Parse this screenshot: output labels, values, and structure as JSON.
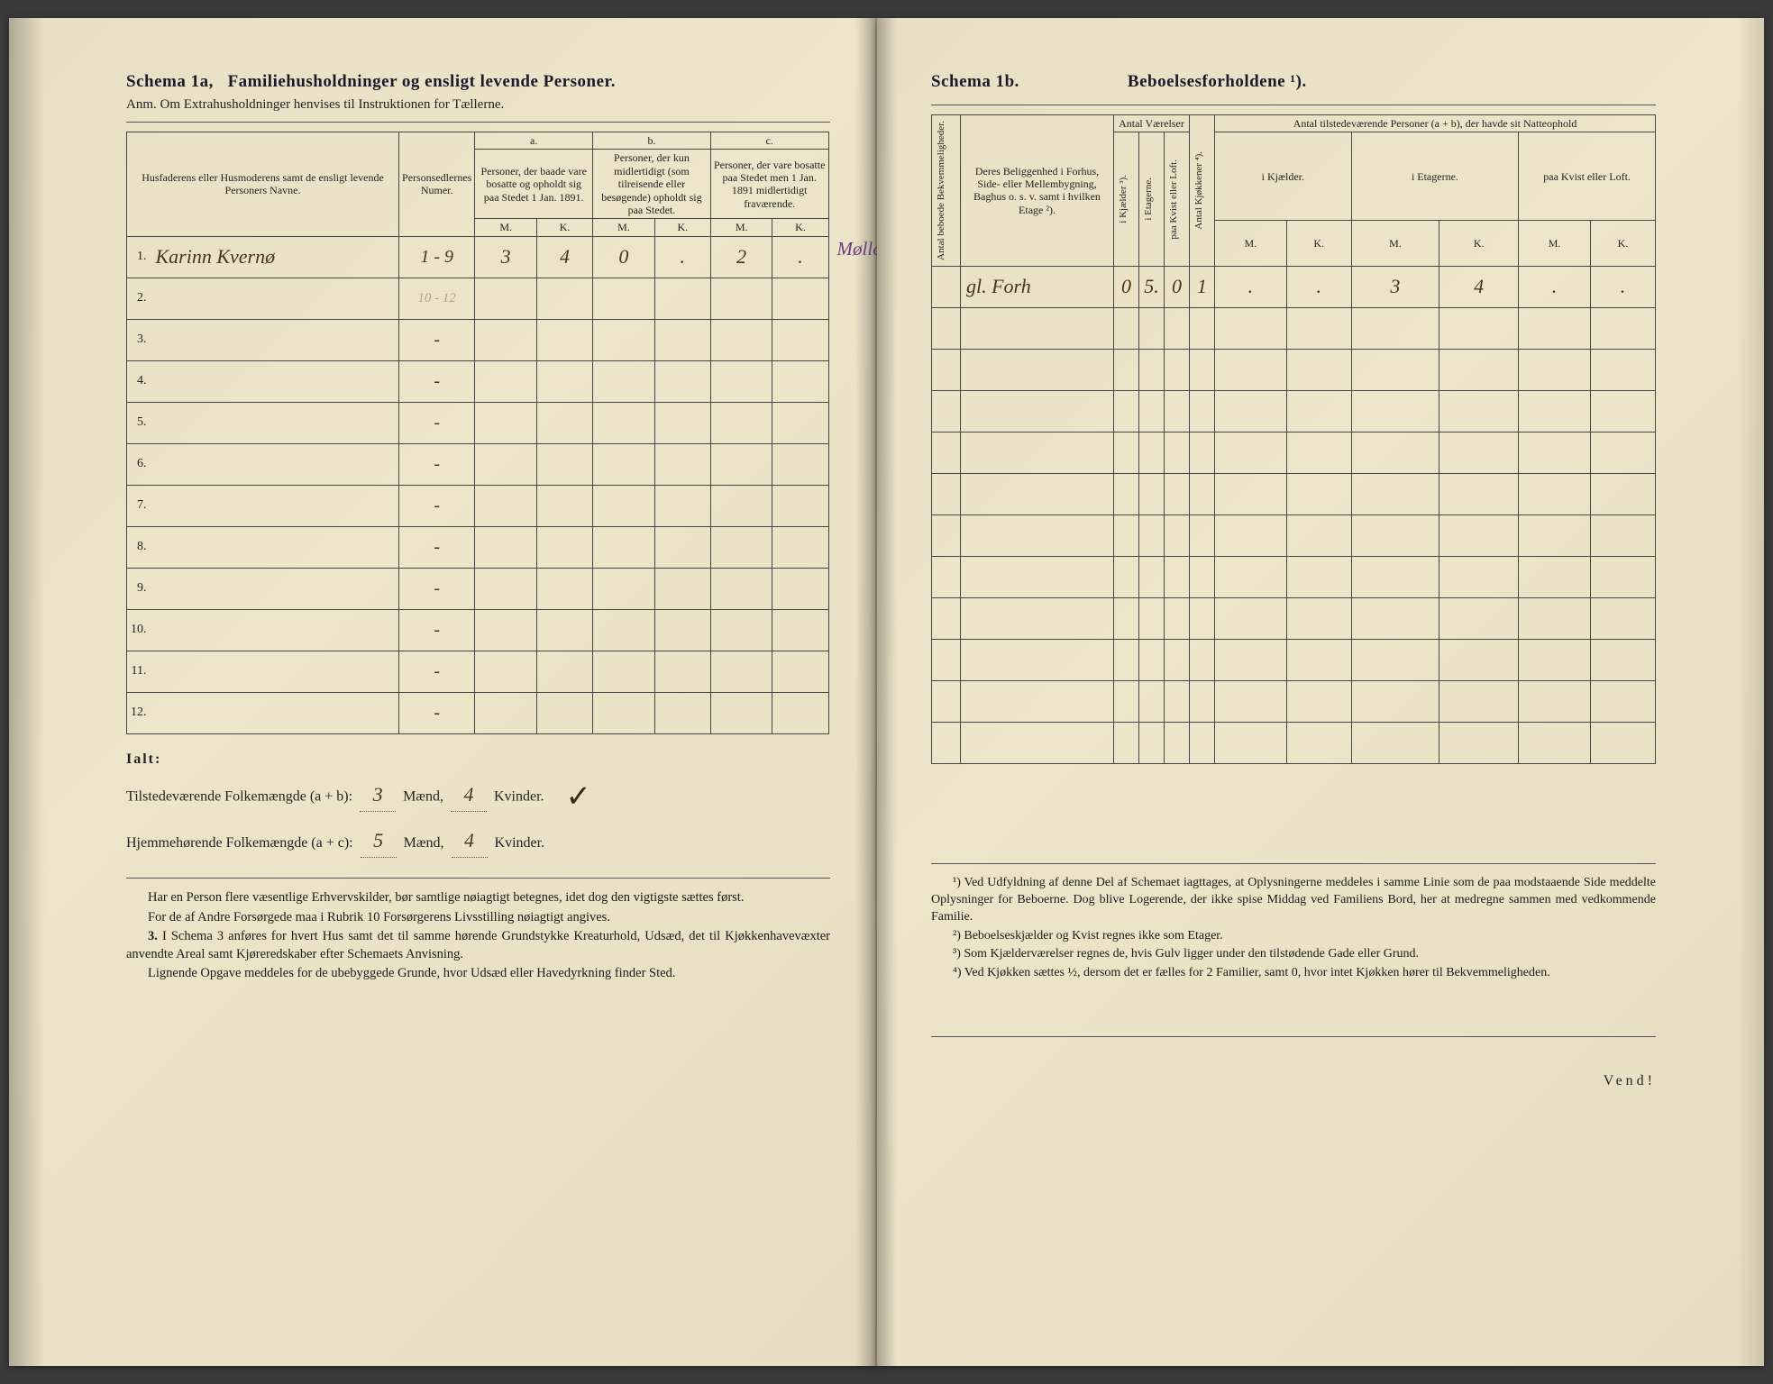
{
  "left": {
    "title_a": "Schema 1a,",
    "title_b": "Familiehusholdninger og ensligt levende Personer.",
    "anm": "Anm. Om Extrahusholdninger henvises til Instruktionen for Tællerne.",
    "head_names": "Husfaderens eller Husmoderens samt de ensligt levende Personers Navne.",
    "head_persed": "Personsedlernes Numer.",
    "col_a": "a.",
    "col_b": "b.",
    "col_c": "c.",
    "head_a": "Personer, der baade vare bosatte og opholdt sig paa Stedet 1 Jan. 1891.",
    "head_b": "Personer, der kun midlertidigt (som tilreisende eller besøgende) opholdt sig paa Stedet.",
    "head_c": "Personer, der vare bosatte paa Stedet men 1 Jan. 1891 midlertidigt fraværende.",
    "mk_m": "M.",
    "mk_k": "K.",
    "rows": [
      {
        "n": "1.",
        "name": "Karinn Kvernø",
        "ps": "1 - 9",
        "am": "3",
        "ak": "4",
        "bm": "0",
        "bk": ".",
        "cm": "2",
        "ck": ".",
        "note": "Mølleierske"
      },
      {
        "n": "2.",
        "name": "",
        "ps": "10 - 12",
        "am": "",
        "ak": "",
        "bm": "",
        "bk": "",
        "cm": "",
        "ck": "",
        "note": ""
      },
      {
        "n": "3.",
        "name": "",
        "ps": "-",
        "am": "",
        "ak": "",
        "bm": "",
        "bk": "",
        "cm": "",
        "ck": "",
        "note": ""
      },
      {
        "n": "4.",
        "name": "",
        "ps": "-",
        "am": "",
        "ak": "",
        "bm": "",
        "bk": "",
        "cm": "",
        "ck": "",
        "note": ""
      },
      {
        "n": "5.",
        "name": "",
        "ps": "-",
        "am": "",
        "ak": "",
        "bm": "",
        "bk": "",
        "cm": "",
        "ck": "",
        "note": ""
      },
      {
        "n": "6.",
        "name": "",
        "ps": "-",
        "am": "",
        "ak": "",
        "bm": "",
        "bk": "",
        "cm": "",
        "ck": "",
        "note": ""
      },
      {
        "n": "7.",
        "name": "",
        "ps": "-",
        "am": "",
        "ak": "",
        "bm": "",
        "bk": "",
        "cm": "",
        "ck": "",
        "note": ""
      },
      {
        "n": "8.",
        "name": "",
        "ps": "-",
        "am": "",
        "ak": "",
        "bm": "",
        "bk": "",
        "cm": "",
        "ck": "",
        "note": ""
      },
      {
        "n": "9.",
        "name": "",
        "ps": "-",
        "am": "",
        "ak": "",
        "bm": "",
        "bk": "",
        "cm": "",
        "ck": "",
        "note": ""
      },
      {
        "n": "10.",
        "name": "",
        "ps": "-",
        "am": "",
        "ak": "",
        "bm": "",
        "bk": "",
        "cm": "",
        "ck": "",
        "note": ""
      },
      {
        "n": "11.",
        "name": "",
        "ps": "-",
        "am": "",
        "ak": "",
        "bm": "",
        "bk": "",
        "cm": "",
        "ck": "",
        "note": ""
      },
      {
        "n": "12.",
        "name": "",
        "ps": "-",
        "am": "",
        "ak": "",
        "bm": "",
        "bk": "",
        "cm": "",
        "ck": "",
        "note": ""
      }
    ],
    "totals_label": "Ialt:",
    "tot1_pre": "Tilstedeværende Folkemængde (a + b):",
    "tot1_m": "3",
    "tot1_m_lbl": "Mænd,",
    "tot1_k": "4",
    "tot1_k_lbl": "Kvinder.",
    "tot2_pre": "Hjemmehørende Folkemængde (a + c):",
    "tot2_m": "5",
    "tot2_k": "4",
    "fn1": "Har en Person flere væsentlige Erhvervskilder, bør samtlige nøiagtigt betegnes, idet dog den vigtigste sættes først.",
    "fn2": "For de af Andre Forsørgede maa i Rubrik 10 Forsørgerens Livsstilling nøiagtigt angives.",
    "fn3_num": "3.",
    "fn3": "I Schema 3 anføres for hvert Hus samt det til samme hørende Grundstykke Kreaturhold, Udsæd, det til Kjøkkenhavevæxter anvendte Areal samt Kjøreredskaber efter Schemaets Anvisning.",
    "fn4": "Lignende Opgave meddeles for de ubebyggede Grunde, hvor Udsæd eller Havedyrkning finder Sted."
  },
  "right": {
    "title_a": "Schema 1b.",
    "title_b": "Beboelsesforholdene ¹).",
    "h_bekv": "Antal beboede Bekvemmeligheder.",
    "h_belig": "Deres Beliggenhed i Forhus, Side- eller Mellembygning, Baghus o. s. v. samt i hvilken Etage ²).",
    "h_vaer": "Antal Værelser",
    "h_kjok": "Antal Kjøkkener ⁴).",
    "h_natte": "Antal tilstedeværende Personer (a + b), der havde sit Natteophold",
    "sub_kjel": "i Kjælder ³).",
    "sub_etag": "i Etagerne.",
    "sub_kvist": "paa Kvist eller Loft.",
    "sub_nkjel": "i Kjælder.",
    "sub_netag": "i Etagerne.",
    "sub_nkvist": "paa Kvist eller Loft.",
    "mk_m": "M.",
    "mk_k": "K.",
    "rows": [
      {
        "bekv": "",
        "belig": "gl. Forh",
        "kjel": "0",
        "etag": "5.",
        "kvist": "0",
        "kjok": "1",
        "nkjel_m": ".",
        "nkjel_k": ".",
        "netag_m": "3",
        "netag_k": "4",
        "nkvist_m": ".",
        "nkvist_k": "."
      },
      {
        "bekv": "",
        "belig": "",
        "kjel": "",
        "etag": "",
        "kvist": "",
        "kjok": "",
        "nkjel_m": "",
        "nkjel_k": "",
        "netag_m": "",
        "netag_k": "",
        "nkvist_m": "",
        "nkvist_k": ""
      },
      {
        "bekv": "",
        "belig": "",
        "kjel": "",
        "etag": "",
        "kvist": "",
        "kjok": "",
        "nkjel_m": "",
        "nkjel_k": "",
        "netag_m": "",
        "netag_k": "",
        "nkvist_m": "",
        "nkvist_k": ""
      },
      {
        "bekv": "",
        "belig": "",
        "kjel": "",
        "etag": "",
        "kvist": "",
        "kjok": "",
        "nkjel_m": "",
        "nkjel_k": "",
        "netag_m": "",
        "netag_k": "",
        "nkvist_m": "",
        "nkvist_k": ""
      },
      {
        "bekv": "",
        "belig": "",
        "kjel": "",
        "etag": "",
        "kvist": "",
        "kjok": "",
        "nkjel_m": "",
        "nkjel_k": "",
        "netag_m": "",
        "netag_k": "",
        "nkvist_m": "",
        "nkvist_k": ""
      },
      {
        "bekv": "",
        "belig": "",
        "kjel": "",
        "etag": "",
        "kvist": "",
        "kjok": "",
        "nkjel_m": "",
        "nkjel_k": "",
        "netag_m": "",
        "netag_k": "",
        "nkvist_m": "",
        "nkvist_k": ""
      },
      {
        "bekv": "",
        "belig": "",
        "kjel": "",
        "etag": "",
        "kvist": "",
        "kjok": "",
        "nkjel_m": "",
        "nkjel_k": "",
        "netag_m": "",
        "netag_k": "",
        "nkvist_m": "",
        "nkvist_k": ""
      },
      {
        "bekv": "",
        "belig": "",
        "kjel": "",
        "etag": "",
        "kvist": "",
        "kjok": "",
        "nkjel_m": "",
        "nkjel_k": "",
        "netag_m": "",
        "netag_k": "",
        "nkvist_m": "",
        "nkvist_k": ""
      },
      {
        "bekv": "",
        "belig": "",
        "kjel": "",
        "etag": "",
        "kvist": "",
        "kjok": "",
        "nkjel_m": "",
        "nkjel_k": "",
        "netag_m": "",
        "netag_k": "",
        "nkvist_m": "",
        "nkvist_k": ""
      },
      {
        "bekv": "",
        "belig": "",
        "kjel": "",
        "etag": "",
        "kvist": "",
        "kjok": "",
        "nkjel_m": "",
        "nkjel_k": "",
        "netag_m": "",
        "netag_k": "",
        "nkvist_m": "",
        "nkvist_k": ""
      },
      {
        "bekv": "",
        "belig": "",
        "kjel": "",
        "etag": "",
        "kvist": "",
        "kjok": "",
        "nkjel_m": "",
        "nkjel_k": "",
        "netag_m": "",
        "netag_k": "",
        "nkvist_m": "",
        "nkvist_k": ""
      },
      {
        "bekv": "",
        "belig": "",
        "kjel": "",
        "etag": "",
        "kvist": "",
        "kjok": "",
        "nkjel_m": "",
        "nkjel_k": "",
        "netag_m": "",
        "netag_k": "",
        "nkvist_m": "",
        "nkvist_k": ""
      }
    ],
    "fn1": "¹) Ved Udfyldning af denne Del af Schemaet iagttages, at Oplysningerne meddeles i samme Linie som de paa modstaaende Side meddelte Oplysninger for Beboerne. Dog blive Logerende, der ikke spise Middag ved Familiens Bord, her at medregne sammen med vedkommende Familie.",
    "fn2": "²) Beboelseskjælder og Kvist regnes ikke som Etager.",
    "fn3": "³) Som Kjælderværelser regnes de, hvis Gulv ligger under den tilstødende Gade eller Grund.",
    "fn4": "⁴) Ved Kjøkken sættes ½, dersom det er fælles for 2 Familier, samt 0, hvor intet Kjøkken hører til Bekvemmeligheden.",
    "vend": "Vend!"
  }
}
